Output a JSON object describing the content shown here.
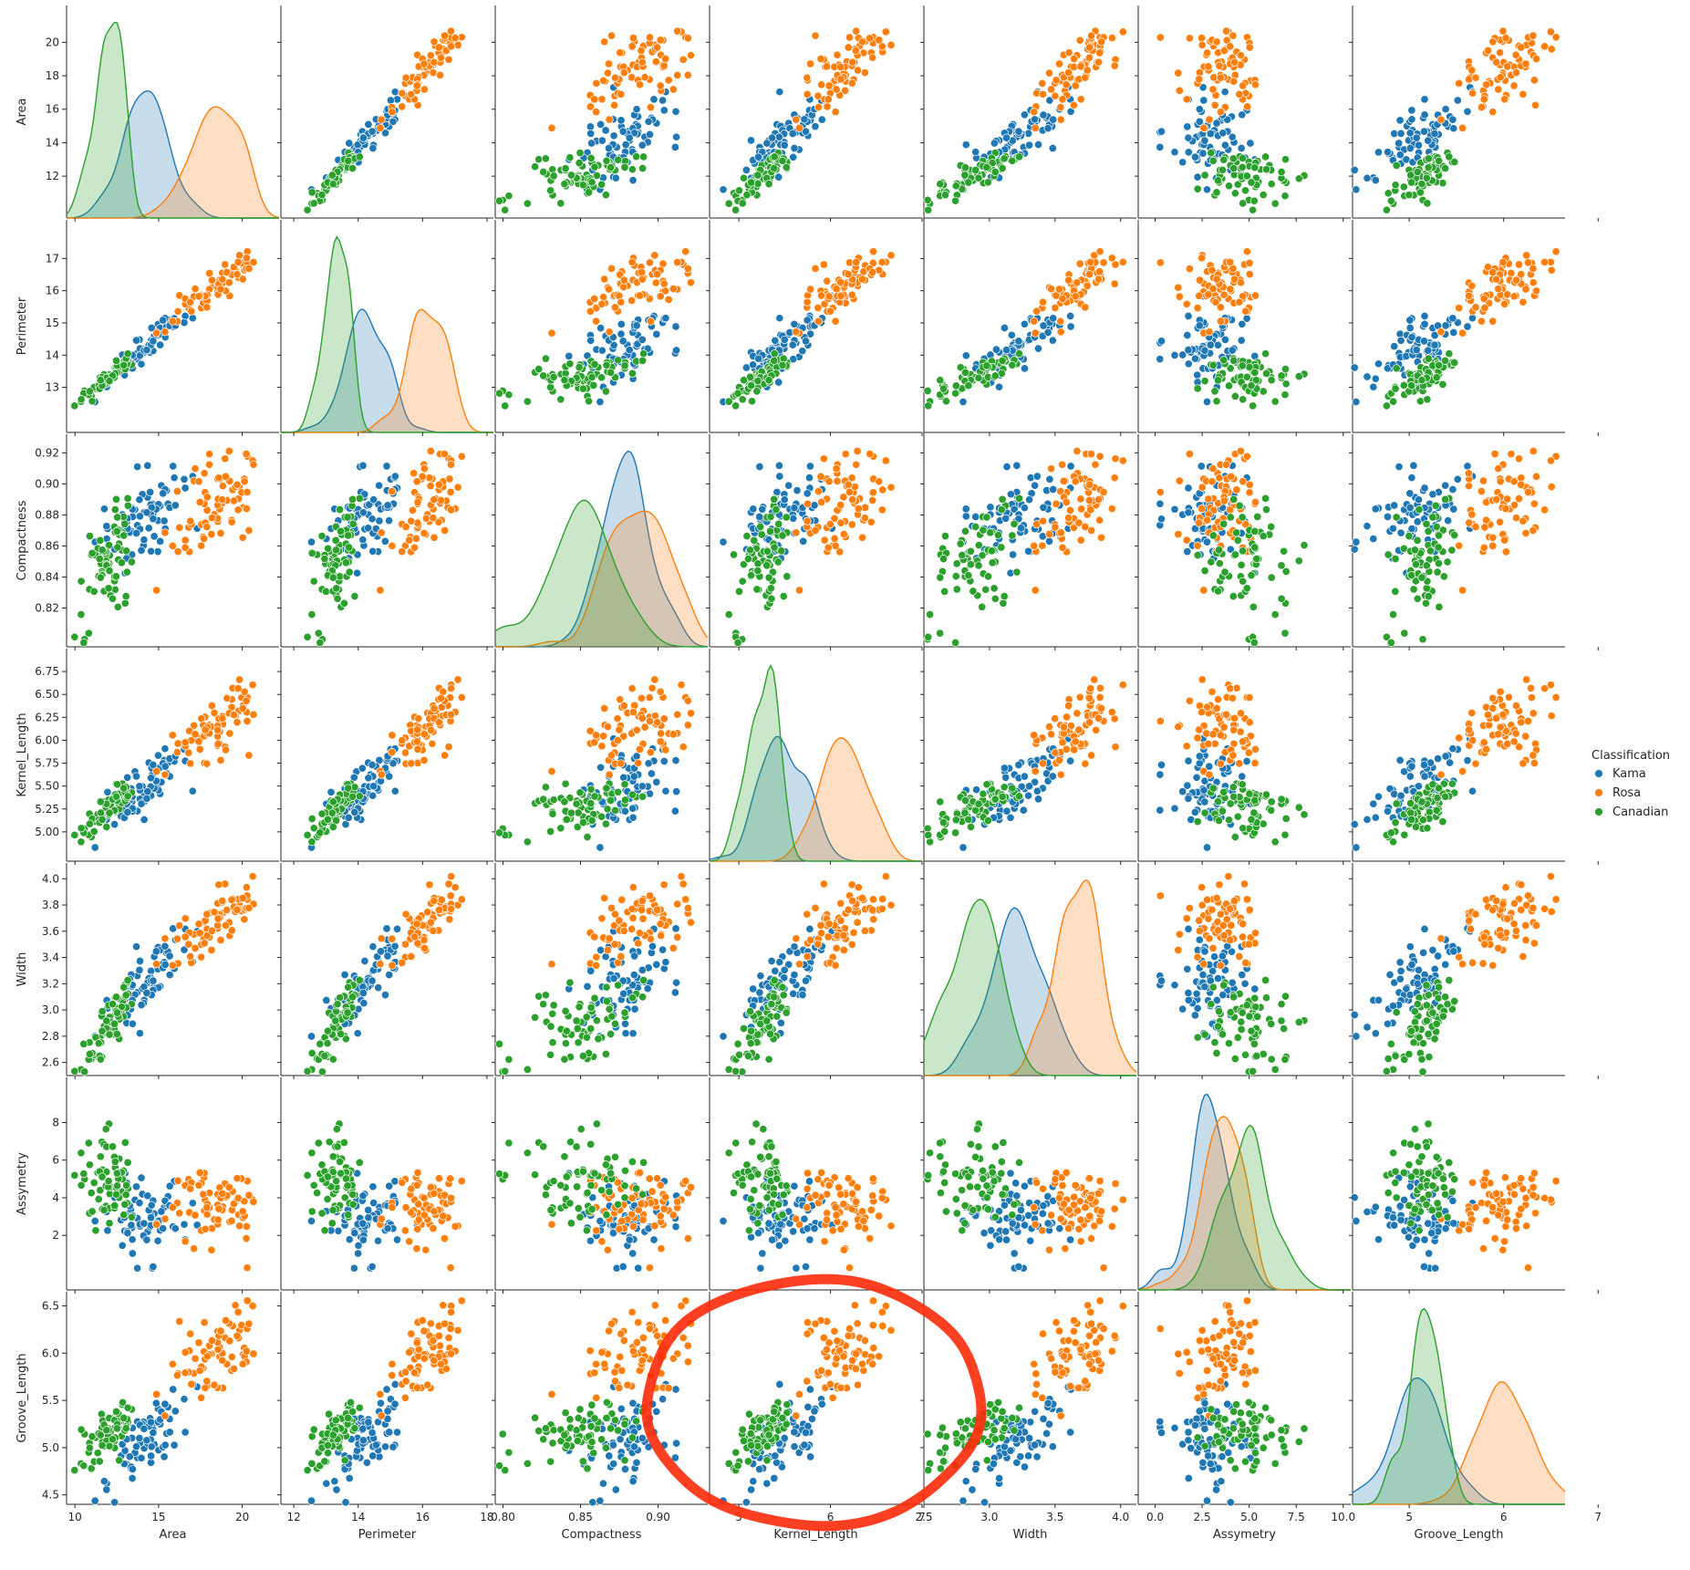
{
  "chart_data": {
    "type": "pairplot",
    "variables": [
      "Area",
      "Perimeter",
      "Compactness",
      "Kernel_Length",
      "Width",
      "Assymetry",
      "Groove_Length"
    ],
    "axis_limits": {
      "Area": [
        9.5,
        22.2
      ],
      "Perimeter": [
        11.6,
        18.2
      ],
      "Compactness": [
        0.795,
        0.932
      ],
      "Kernel_Length": [
        4.68,
        7.0
      ],
      "Width": [
        2.5,
        4.12
      ],
      "Assymetry": [
        -0.9,
        10.4
      ],
      "Groove_Length": [
        4.4,
        6.65
      ]
    },
    "ticks": {
      "Area": [
        "10",
        "15",
        "20"
      ],
      "Perimeter": [
        "12",
        "14",
        "16",
        "18"
      ],
      "Compactness": [
        "0.80",
        "0.85",
        "0.90"
      ],
      "Kernel_Length": [
        "5",
        "6",
        "7"
      ],
      "Width": [
        "2.5",
        "3.0",
        "3.5",
        "4.0"
      ],
      "Assymetry": [
        "0.0",
        "2.5",
        "5.0",
        "7.5",
        "10.0"
      ],
      "Groove_Length": [
        "5",
        "6",
        "7"
      ]
    },
    "yticks": {
      "Area": [
        "12",
        "14",
        "16",
        "18",
        "20"
      ],
      "Perimeter": [
        "13",
        "14",
        "15",
        "16",
        "17"
      ],
      "Compactness": [
        "0.82",
        "0.84",
        "0.86",
        "0.88",
        "0.90",
        "0.92"
      ],
      "Kernel_Length": [
        "5.00",
        "5.25",
        "5.50",
        "5.75",
        "6.00",
        "6.25",
        "6.50",
        "6.75"
      ],
      "Width": [
        "2.6",
        "2.8",
        "3.0",
        "3.2",
        "3.4",
        "3.6",
        "3.8",
        "4.0"
      ],
      "Assymetry": [
        "2",
        "4",
        "6",
        "8"
      ],
      "Groove_Length": [
        "4.5",
        "5.0",
        "5.5",
        "6.0",
        "6.5"
      ]
    },
    "legend": {
      "title": "Classification",
      "placement": "right",
      "entries": [
        "Kama",
        "Rosa",
        "Canadian"
      ]
    },
    "series": [
      {
        "name": "Kama",
        "color": "#1f77b4",
        "summary": {
          "Area": [
            14.3,
            1.2
          ],
          "Perimeter": [
            14.3,
            0.58
          ],
          "Compactness": [
            0.88,
            0.016
          ],
          "Kernel_Length": [
            5.51,
            0.23
          ],
          "Width": [
            3.24,
            0.18
          ],
          "Assymetry": [
            2.67,
            1.17
          ],
          "Groove_Length": [
            5.09,
            0.26
          ]
        }
      },
      {
        "name": "Rosa",
        "color": "#ff7f0e",
        "summary": {
          "Area": [
            18.3,
            1.44
          ],
          "Perimeter": [
            16.1,
            0.62
          ],
          "Compactness": [
            0.884,
            0.016
          ],
          "Kernel_Length": [
            6.15,
            0.27
          ],
          "Width": [
            3.68,
            0.19
          ],
          "Assymetry": [
            3.64,
            1.18
          ],
          "Groove_Length": [
            6.02,
            0.25
          ]
        }
      },
      {
        "name": "Canadian",
        "color": "#2ca02c",
        "summary": {
          "Area": [
            11.87,
            0.72
          ],
          "Perimeter": [
            13.25,
            0.34
          ],
          "Compactness": [
            0.849,
            0.022
          ],
          "Kernel_Length": [
            5.23,
            0.14
          ],
          "Width": [
            2.85,
            0.15
          ],
          "Assymetry": [
            4.79,
            1.34
          ],
          "Groove_Length": [
            5.12,
            0.16
          ]
        }
      }
    ],
    "annotation": {
      "shape": "hand-drawn ellipse",
      "color": "#ff2a0a",
      "target_panel": [
        "Groove_Length",
        "Kernel_Length"
      ]
    }
  }
}
